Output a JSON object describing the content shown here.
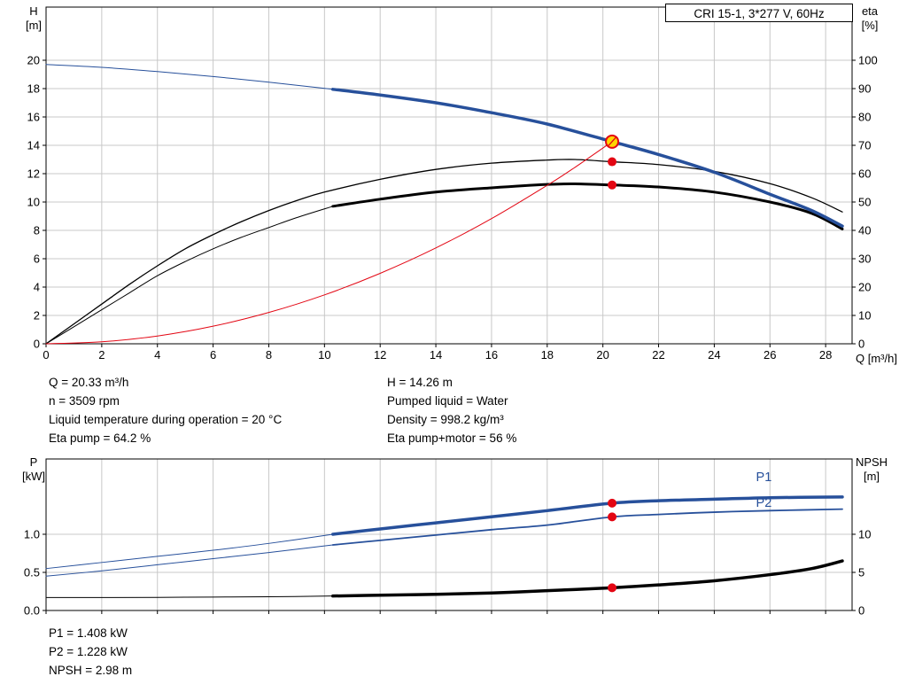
{
  "header": {
    "title_box": "CRI 15-1, 3*277 V, 60Hz"
  },
  "colors": {
    "pump_blue": "#27509b",
    "curve_black": "#000000",
    "system_red": "#e30613",
    "dot": "#e30613",
    "duty_fill": "#ffd500",
    "grid": "#c8c8c8"
  },
  "axes_labels": {
    "h": "H",
    "h_unit": "[m]",
    "eta": "eta",
    "eta_unit": "[%]",
    "q": "Q [m³/h]",
    "p": "P",
    "p_unit": "[kW]",
    "npsh": "NPSH",
    "npsh_unit": "[m]"
  },
  "readouts": {
    "q": "Q = 20.33 m³/h",
    "n": "n = 3509 rpm",
    "temp": "Liquid temperature during operation = 20 °C",
    "eta_pump": "Eta pump = 64.2 %",
    "h": "H = 14.26 m",
    "liquid": "Pumped liquid = Water",
    "density": "Density = 998.2 kg/m³",
    "eta_total": "Eta pump+motor = 56 %",
    "p1": "P1 = 1.408 kW",
    "p2": "P2 = 1.228 kW",
    "npsh": "NPSH = 2.98 m"
  },
  "chart_data": [
    {
      "type": "line",
      "title": "CRI 15-1, 3*277 V, 60Hz",
      "xlabel": "Q [m³/h]",
      "ylabel_left": "H [m]",
      "ylabel_right": "eta [%]",
      "xlim": [
        0,
        28.95
      ],
      "ylim_left": [
        0,
        23.75
      ],
      "ylim_right": [
        0,
        118.75
      ],
      "x_ticks": [
        [
          0,
          "0"
        ],
        [
          2,
          "2"
        ],
        [
          4,
          "4"
        ],
        [
          6,
          "6"
        ],
        [
          8,
          "8"
        ],
        [
          10,
          "10"
        ],
        [
          12,
          "12"
        ],
        [
          14,
          "14"
        ],
        [
          16,
          "16"
        ],
        [
          18,
          "18"
        ],
        [
          20,
          "20"
        ],
        [
          22,
          "22"
        ],
        [
          24,
          "24"
        ],
        [
          26,
          "26"
        ],
        [
          28,
          "28"
        ]
      ],
      "y_ticks_left": [
        [
          0,
          "0"
        ],
        [
          2,
          "2"
        ],
        [
          4,
          "4"
        ],
        [
          6,
          "6"
        ],
        [
          8,
          "8"
        ],
        [
          10,
          "10"
        ],
        [
          12,
          "12"
        ],
        [
          14,
          "14"
        ],
        [
          16,
          "16"
        ],
        [
          18,
          "18"
        ],
        [
          20,
          "20"
        ]
      ],
      "y_ticks_right": [
        [
          0,
          "0"
        ],
        [
          10,
          "10"
        ],
        [
          20,
          "20"
        ],
        [
          30,
          "30"
        ],
        [
          40,
          "40"
        ],
        [
          50,
          "50"
        ],
        [
          60,
          "60"
        ],
        [
          70,
          "70"
        ],
        [
          80,
          "80"
        ],
        [
          90,
          "90"
        ],
        [
          100,
          "100"
        ]
      ],
      "series": [
        {
          "name": "eta-pump-curve",
          "axis": "right",
          "color": "#000000",
          "width": 1.3,
          "x": [
            0,
            1,
            2,
            3,
            4,
            5,
            6,
            7,
            8,
            9,
            10,
            12,
            14,
            16,
            18,
            19,
            20.33,
            22,
            24,
            26,
            27.5,
            28.6
          ],
          "y": [
            0,
            7,
            14,
            21,
            27.5,
            33.5,
            38.5,
            43,
            47,
            50.5,
            53.5,
            58,
            61.5,
            63.7,
            64.8,
            65,
            64.2,
            63.2,
            60.8,
            56.5,
            51.5,
            46.5
          ]
        },
        {
          "name": "eta-pump-motor-curve-thin",
          "axis": "right",
          "color": "#000000",
          "width": 1,
          "x": [
            0,
            1,
            2,
            3,
            4,
            5,
            6,
            7,
            8,
            9,
            10.3
          ],
          "y": [
            0,
            6,
            12,
            18,
            24,
            29,
            33.5,
            37.5,
            41,
            44.5,
            48.5
          ]
        },
        {
          "name": "eta-pump-motor-curve",
          "axis": "right",
          "color": "#000000",
          "width": 3,
          "x": [
            10.3,
            12,
            14,
            16,
            18,
            19,
            20.33,
            22,
            24,
            26,
            27.5,
            28.6
          ],
          "y": [
            48.5,
            51,
            53.5,
            55,
            56.2,
            56.4,
            56,
            55.3,
            53.5,
            50,
            46,
            40.5
          ]
        },
        {
          "name": "system-curve",
          "axis": "left",
          "color": "#e30613",
          "width": 1,
          "x": [
            0,
            2,
            4,
            6,
            8,
            10,
            12,
            14,
            16,
            18,
            19,
            20.33
          ],
          "y": [
            0,
            0.14,
            0.55,
            1.24,
            2.21,
            3.45,
            4.97,
            6.76,
            8.83,
            11.18,
            12.45,
            14.26
          ]
        },
        {
          "name": "pump-curve-thin",
          "axis": "left",
          "color": "#27509b",
          "width": 1,
          "x": [
            0,
            2,
            4,
            6,
            8,
            10.3
          ],
          "y": [
            19.7,
            19.5,
            19.2,
            18.85,
            18.45,
            17.95
          ]
        },
        {
          "name": "pump-curve",
          "axis": "left",
          "color": "#27509b",
          "width": 3.5,
          "x": [
            10.3,
            12,
            14,
            16,
            18,
            20.33,
            22,
            24,
            26,
            27.5,
            28.6
          ],
          "y": [
            17.95,
            17.55,
            17.0,
            16.3,
            15.5,
            14.26,
            13.35,
            12.1,
            10.55,
            9.4,
            8.3
          ]
        }
      ],
      "markers": [
        {
          "style": "dot",
          "axis": "right",
          "x": 20.33,
          "y": 64.2
        },
        {
          "style": "dot",
          "axis": "right",
          "x": 20.33,
          "y": 56
        },
        {
          "style": "duty",
          "axis": "left",
          "x": 20.33,
          "y": 14.26
        }
      ]
    },
    {
      "type": "line",
      "title": "",
      "xlabel": "Q [m³/h]",
      "ylabel_left": "P [kW]",
      "ylabel_right": "NPSH [m]",
      "xlim": [
        0,
        28.95
      ],
      "ylim_left": [
        0,
        1.988
      ],
      "ylim_right": [
        0,
        19.88
      ],
      "x_ticks": [
        [
          0,
          "0"
        ],
        [
          2,
          "2"
        ],
        [
          4,
          "4"
        ],
        [
          6,
          "6"
        ],
        [
          8,
          "8"
        ],
        [
          10,
          "10"
        ],
        [
          12,
          "12"
        ],
        [
          14,
          "14"
        ],
        [
          16,
          "16"
        ],
        [
          18,
          "18"
        ],
        [
          20,
          "20"
        ],
        [
          22,
          "22"
        ],
        [
          24,
          "24"
        ],
        [
          26,
          "26"
        ],
        [
          28,
          "28"
        ]
      ],
      "y_ticks_left": [
        [
          0,
          "0.0"
        ],
        [
          0.5,
          "0.5"
        ],
        [
          1,
          "1.0"
        ]
      ],
      "y_ticks_right": [
        [
          0,
          "0"
        ],
        [
          5,
          "5"
        ],
        [
          10,
          "10"
        ]
      ],
      "series": [
        {
          "name": "p2-curve-thin",
          "axis": "left",
          "color": "#27509b",
          "width": 1,
          "x": [
            0,
            2,
            4,
            6,
            8,
            10.3
          ],
          "y": [
            0.45,
            0.52,
            0.6,
            0.68,
            0.76,
            0.86
          ]
        },
        {
          "name": "p2-curve",
          "axis": "left",
          "color": "#27509b",
          "width": 1.8,
          "x": [
            10.3,
            12,
            14,
            16,
            18,
            20.33,
            22,
            24,
            26,
            28.6
          ],
          "y": [
            0.86,
            0.92,
            0.99,
            1.06,
            1.12,
            1.228,
            1.26,
            1.29,
            1.31,
            1.33
          ]
        },
        {
          "name": "p1-curve-thin",
          "axis": "left",
          "color": "#27509b",
          "width": 1,
          "x": [
            0,
            2,
            4,
            6,
            8,
            10.3
          ],
          "y": [
            0.55,
            0.63,
            0.71,
            0.79,
            0.88,
            1.0
          ]
        },
        {
          "name": "p1-curve",
          "axis": "left",
          "color": "#27509b",
          "width": 3.5,
          "x": [
            10.3,
            12,
            14,
            16,
            18,
            20.33,
            22,
            24,
            26,
            28.6
          ],
          "y": [
            1.0,
            1.07,
            1.15,
            1.23,
            1.31,
            1.408,
            1.44,
            1.46,
            1.48,
            1.49
          ]
        },
        {
          "name": "npsh-curve-thin",
          "axis": "right",
          "color": "#000000",
          "width": 1,
          "x": [
            0,
            2,
            4,
            6,
            8,
            10.3
          ],
          "y": [
            1.7,
            1.7,
            1.72,
            1.76,
            1.8,
            1.9
          ]
        },
        {
          "name": "npsh-curve",
          "axis": "right",
          "color": "#000000",
          "width": 3.5,
          "x": [
            10.3,
            12,
            14,
            16,
            18,
            20.33,
            22,
            24,
            26,
            27.5,
            28.6
          ],
          "y": [
            1.9,
            2.0,
            2.12,
            2.3,
            2.6,
            2.98,
            3.35,
            3.9,
            4.7,
            5.5,
            6.5
          ]
        }
      ],
      "markers": [
        {
          "style": "dot",
          "axis": "left",
          "x": 20.33,
          "y": 1.408
        },
        {
          "style": "dot",
          "axis": "left",
          "x": 20.33,
          "y": 1.228
        },
        {
          "style": "dot",
          "axis": "right",
          "x": 20.33,
          "y": 2.98
        }
      ],
      "labels": [
        {
          "text": "P1",
          "x": 25.5,
          "y": 1.7,
          "axis": "left",
          "color": "#27509b"
        },
        {
          "text": "P2",
          "x": 25.5,
          "y": 1.36,
          "axis": "left",
          "color": "#27509b"
        }
      ]
    }
  ]
}
